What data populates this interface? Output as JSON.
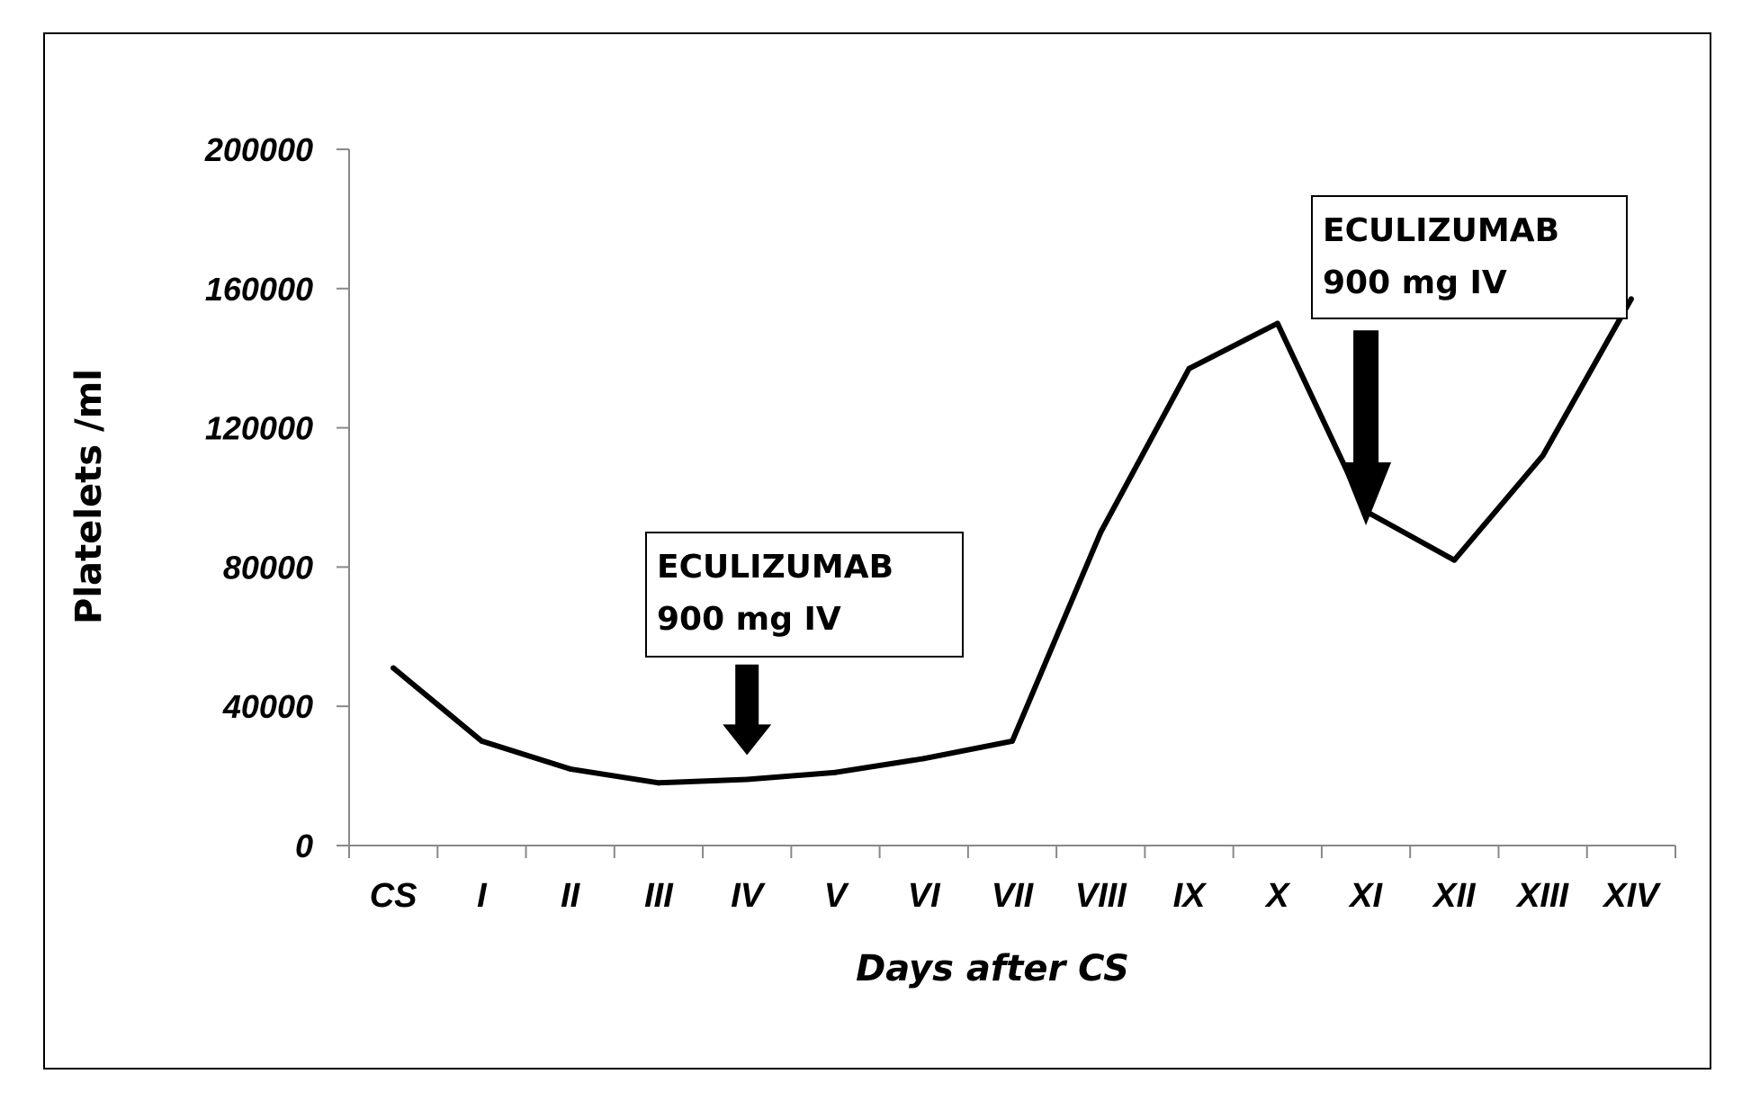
{
  "chart_data": {
    "type": "line",
    "title": "",
    "xlabel": "Days after CS",
    "ylabel": "Platelets /ml",
    "categories": [
      "CS",
      "I",
      "II",
      "III",
      "IV",
      "V",
      "VI",
      "VII",
      "VIII",
      "IX",
      "X",
      "XI",
      "XII",
      "XIII",
      "XIV"
    ],
    "series": [
      {
        "values": [
          51000,
          30000,
          22000,
          18000,
          19000,
          21000,
          25000,
          30000,
          90000,
          137000,
          150000,
          96000,
          82000,
          112000,
          157000
        ]
      }
    ],
    "ylim": [
      0,
      200000
    ],
    "yticks": [
      0,
      40000,
      80000,
      120000,
      160000,
      200000
    ],
    "grid": false,
    "legend": "none",
    "line_color": "#000000",
    "annotations": [
      {
        "line1": "ECULIZUMAB",
        "line2": "900 mg IV",
        "category": "IV",
        "arrow_top_value": 52000,
        "arrow_tip_value": 26000
      },
      {
        "line1": "ECULIZUMAB",
        "line2": "900 mg IV",
        "category": "XI",
        "arrow_top_value": 148000,
        "arrow_tip_value": 92000
      }
    ]
  }
}
